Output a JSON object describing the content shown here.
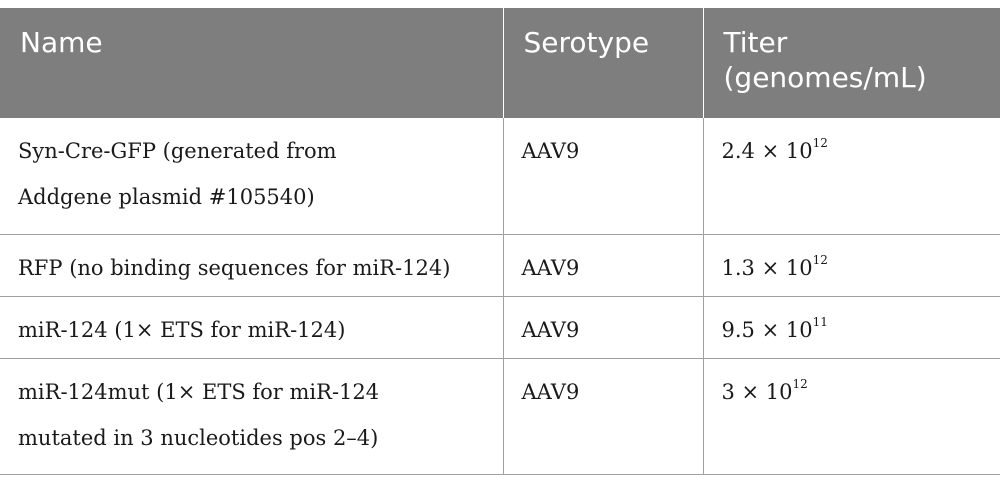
{
  "table": {
    "headers": [
      "Name",
      "Serotype",
      "Titer (genomes/mL)"
    ],
    "rows": [
      {
        "name_line1": "Syn-Cre-GFP (generated from",
        "name_line2": "Addgene plasmid #105540)",
        "serotype": "AAV9",
        "titer_base": "2.4 × 10",
        "titer_exp": "12"
      },
      {
        "name_line1": "RFP (no binding sequences for miR-124)",
        "name_line2": "",
        "serotype": "AAV9",
        "titer_base": "1.3 × 10",
        "titer_exp": "12"
      },
      {
        "name_line1": "miR-124 (1× ETS for miR-124)",
        "name_line2": "",
        "serotype": "AAV9",
        "titer_base": "9.5 × 10",
        "titer_exp": "11"
      },
      {
        "name_line1": "miR-124mut (1× ETS for miR-124",
        "name_line2": "mutated in 3 nucleotides pos 2–4)",
        "serotype": "AAV9",
        "titer_base": "3 × 10",
        "titer_exp": "12"
      }
    ]
  }
}
